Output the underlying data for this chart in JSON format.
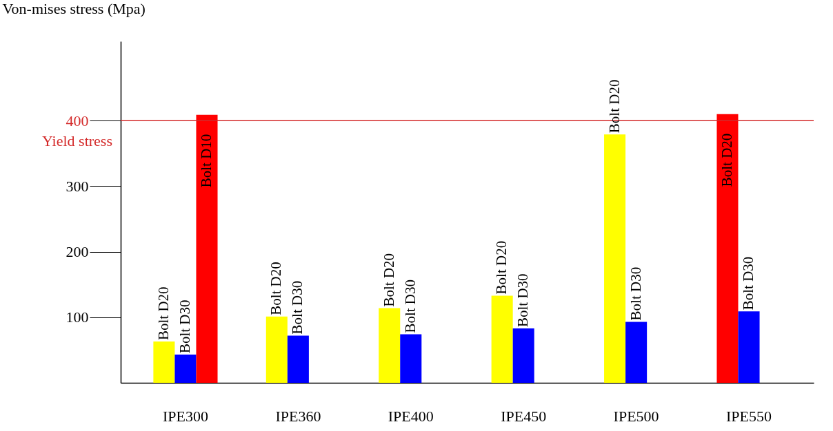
{
  "chart_data": {
    "type": "bar",
    "ylabel": "Von-mises stress (Mpa)",
    "categories": [
      "IPE300",
      "IPE360",
      "IPE400",
      "IPE450",
      "IPE500",
      "IPE550"
    ],
    "series": [
      {
        "colors": [
          "#ffff00",
          "#ffff00",
          "#ffff00",
          "#ffff00",
          "#ffff00",
          "#ff0000"
        ],
        "values": [
          63,
          101,
          114,
          133,
          379,
          410
        ],
        "value_labels": [
          "Bolt D20",
          "Bolt D20",
          "Bolt D20",
          "Bolt D20",
          "Bolt D20",
          "Bolt D20"
        ]
      },
      {
        "color": "#0000ff",
        "values": [
          43,
          72,
          74,
          83,
          93,
          109
        ],
        "value_labels": [
          "Bolt D30",
          "Bolt D30",
          "Bolt D30",
          "Bolt D30",
          "Bolt D30",
          "Bolt D30"
        ]
      },
      {
        "color": "#ff0000",
        "values": [
          409,
          null,
          null,
          null,
          null,
          null
        ],
        "value_labels": [
          "Bolt D10",
          null,
          null,
          null,
          null,
          null
        ]
      }
    ],
    "ylim": [
      0,
      521
    ],
    "yticks": [
      100,
      200,
      300,
      400
    ],
    "grid": false,
    "ref_lines": [
      {
        "axis": "y",
        "value": 400,
        "label": "Yield stress",
        "color": "#d42a2a"
      }
    ]
  }
}
